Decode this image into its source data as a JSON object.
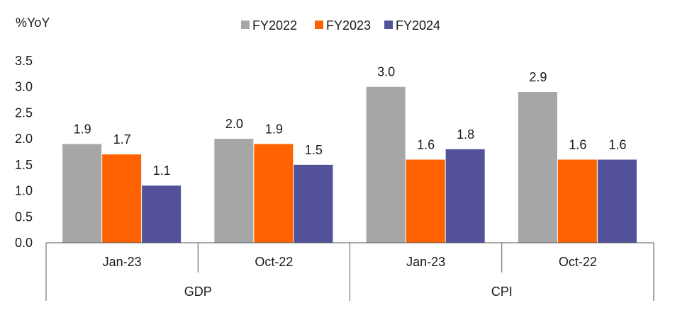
{
  "chart_data": {
    "type": "bar",
    "ylabel": "%YoY",
    "ylim": [
      0,
      3.5
    ],
    "yticks": [
      "0.0",
      "0.5",
      "1.0",
      "1.5",
      "2.0",
      "2.5",
      "3.0",
      "3.5"
    ],
    "grid": false,
    "legend_position": "top-center",
    "groups": [
      {
        "name": "GDP",
        "categories": [
          "Jan-23",
          "Oct-22"
        ]
      },
      {
        "name": "CPI",
        "categories": [
          "Jan-23",
          "Oct-22"
        ]
      }
    ],
    "categories": [
      "Jan-23",
      "Oct-22",
      "Jan-23",
      "Oct-22"
    ],
    "series": [
      {
        "name": "FY2022",
        "color": "#a6a6a6",
        "values": [
          1.9,
          2.0,
          3.0,
          2.9
        ],
        "labels": [
          "1.9",
          "2.0",
          "3.0",
          "2.9"
        ]
      },
      {
        "name": "FY2023",
        "color": "#ff6200",
        "values": [
          1.7,
          1.9,
          1.6,
          1.6
        ],
        "labels": [
          "1.7",
          "1.9",
          "1.6",
          "1.6"
        ]
      },
      {
        "name": "FY2024",
        "color": "#525199",
        "values": [
          1.1,
          1.5,
          1.8,
          1.6
        ],
        "labels": [
          "1.1",
          "1.5",
          "1.8",
          "1.6"
        ]
      }
    ]
  }
}
